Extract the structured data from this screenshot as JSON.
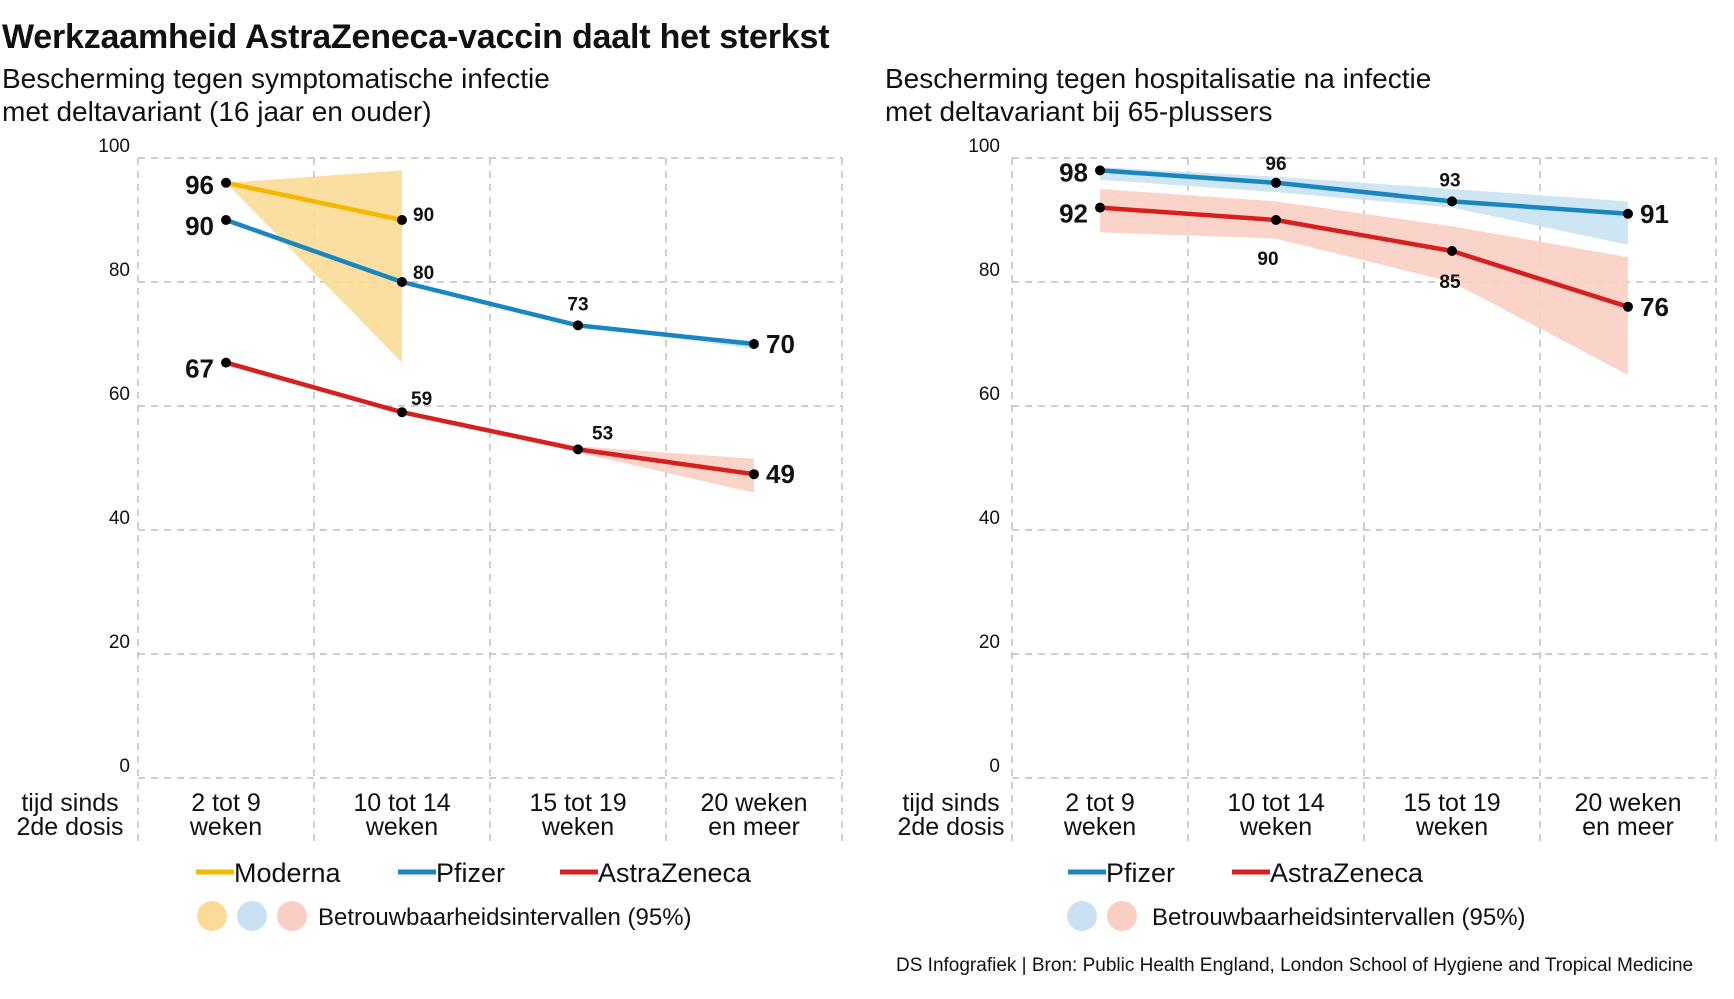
{
  "title": "Werkzaamheid AstraZeneca-vaccin daalt het sterkst",
  "source": "DS Infografiek | Bron: Public Health England, London School of Hygiene and Tropical Medicine",
  "colors": {
    "Moderna": "#f5b800",
    "Pfizer": "#1a86c0",
    "AstraZeneca": "#d6201f",
    "Moderna_ci": "#fbdc96",
    "Pfizer_ci": "#c9e2f2",
    "AstraZeneca_ci": "#f9cfc2"
  },
  "chart_data": [
    {
      "type": "line",
      "subtitle_lines": [
        "Bescherming tegen symptomatische infectie",
        "met deltavariant (16 jaar en ouder)"
      ],
      "xlabel_lines": [
        "tijd sinds",
        "2de dosis"
      ],
      "categories": [
        [
          "2 tot 9",
          "weken"
        ],
        [
          "10 tot 14",
          "weken"
        ],
        [
          "15 tot 19",
          "weken"
        ],
        [
          "20 weken",
          "en meer"
        ]
      ],
      "ylim": [
        0,
        100
      ],
      "yticks": [
        "0",
        "20",
        "40",
        "60",
        "80",
        "100"
      ],
      "grid": true,
      "series": [
        {
          "name": "Moderna",
          "values": [
            96,
            90,
            null,
            null
          ],
          "labels": [
            "96",
            "90",
            "",
            ""
          ],
          "ci_lower": [
            96,
            67,
            null,
            null
          ],
          "ci_upper": [
            96,
            98,
            null,
            null
          ]
        },
        {
          "name": "Pfizer",
          "values": [
            90,
            80,
            73,
            70
          ],
          "labels": [
            "90",
            "80",
            "73",
            "70"
          ],
          "ci_lower": [
            90,
            80,
            73,
            69.2
          ],
          "ci_upper": [
            90,
            80,
            73,
            70.5
          ]
        },
        {
          "name": "AstraZeneca",
          "values": [
            67,
            59,
            53,
            49
          ],
          "labels": [
            "67",
            "59",
            "53",
            "49"
          ],
          "ci_lower": [
            67,
            59,
            52.5,
            46
          ],
          "ci_upper": [
            67,
            59,
            53.5,
            51.5
          ]
        }
      ],
      "legend": [
        "Moderna",
        "Pfizer",
        "AstraZeneca"
      ],
      "ci_legend_label": "Betrouwbaarheidsintervallen (95%)"
    },
    {
      "type": "line",
      "subtitle_lines": [
        "Bescherming tegen hospitalisatie na infectie",
        "met deltavariant bij 65-plussers"
      ],
      "xlabel_lines": [
        "tijd sinds",
        "2de dosis"
      ],
      "categories": [
        [
          "2 tot 9",
          "weken"
        ],
        [
          "10 tot 14",
          "weken"
        ],
        [
          "15 tot 19",
          "weken"
        ],
        [
          "20 weken",
          "en meer"
        ]
      ],
      "ylim": [
        0,
        100
      ],
      "yticks": [
        "0",
        "20",
        "40",
        "60",
        "80",
        "100"
      ],
      "grid": true,
      "series": [
        {
          "name": "Pfizer",
          "values": [
            98,
            96,
            93,
            91
          ],
          "labels": [
            "98",
            "96",
            "93",
            "91"
          ],
          "ci_lower": [
            96.5,
            94.5,
            92,
            86
          ],
          "ci_upper": [
            98.5,
            97,
            95,
            93
          ]
        },
        {
          "name": "AstraZeneca",
          "values": [
            92,
            90,
            85,
            76
          ],
          "labels": [
            "92",
            "90",
            "85",
            "76"
          ],
          "ci_lower": [
            88,
            87,
            80,
            65
          ],
          "ci_upper": [
            95,
            93,
            89,
            84
          ]
        }
      ],
      "legend": [
        "Pfizer",
        "AstraZeneca"
      ],
      "ci_legend_label": "Betrouwbaarheidsintervallen (95%)"
    }
  ]
}
